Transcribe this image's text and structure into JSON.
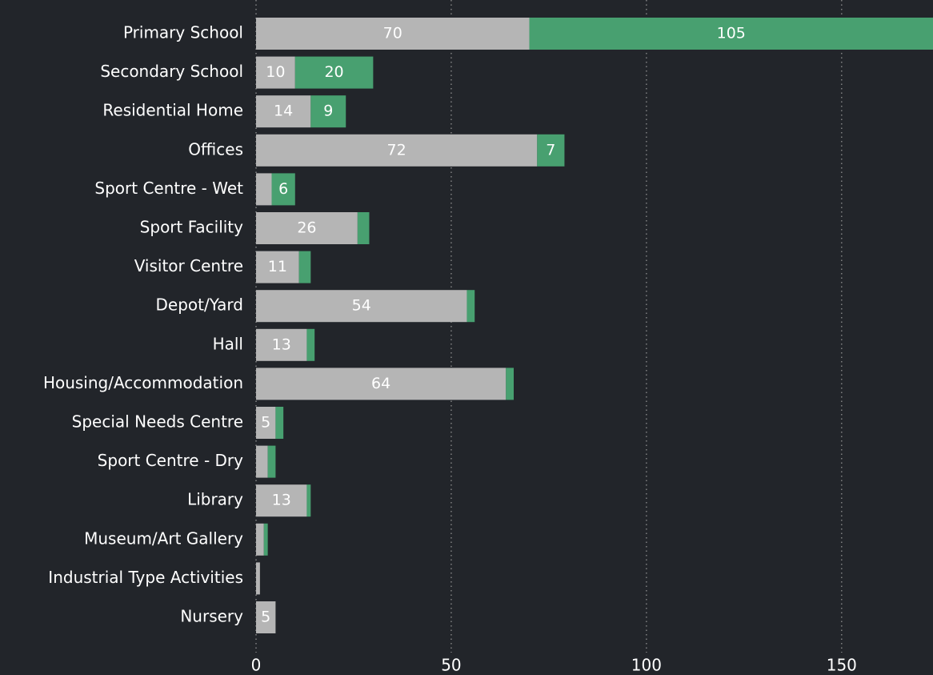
{
  "chart_data": {
    "type": "stacked_barh",
    "categories": [
      "Primary School",
      "Secondary School",
      "Residential Home",
      "Offices",
      "Sport Centre - Wet",
      "Sport Facility",
      "Visitor Centre",
      "Depot/Yard",
      "Hall",
      "Housing/Accommodation",
      "Special Needs Centre",
      "Sport Centre - Dry",
      "Library",
      "Museum/Art Gallery",
      "Industrial Type Activities",
      "Nursery"
    ],
    "series": [
      {
        "color": "#b5b5b5",
        "values": [
          70,
          10,
          14,
          72,
          4,
          26,
          11,
          54,
          13,
          64,
          5,
          3,
          13,
          2,
          1,
          5
        ]
      },
      {
        "color": "#48a070",
        "values": [
          105,
          20,
          9,
          7,
          6,
          3,
          3,
          2,
          2,
          2,
          2,
          2,
          1,
          1,
          0,
          0
        ]
      }
    ],
    "xlim": [
      0,
      173.4
    ],
    "xticks": [
      0,
      50,
      100,
      150
    ],
    "grid": true
  }
}
